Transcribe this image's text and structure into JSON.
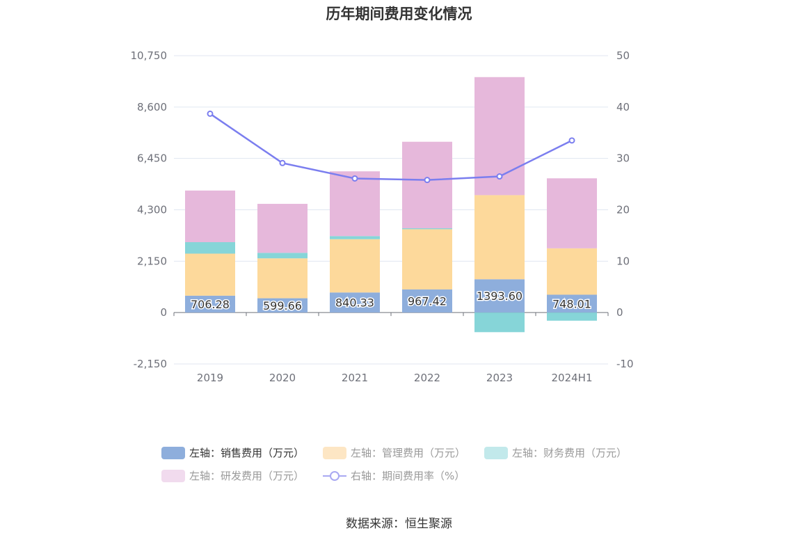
{
  "chart_data": {
    "type": "bar",
    "title": "历年期间费用变化情况",
    "categories": [
      "2019",
      "2020",
      "2021",
      "2022",
      "2023",
      "2024H1"
    ],
    "left_axis": {
      "ticks": [
        "10,750",
        "8,600",
        "6,450",
        "4,300",
        "2,150",
        "0",
        "-2,150"
      ],
      "ylim": [
        -2150,
        10750
      ]
    },
    "right_axis": {
      "ticks": [
        "50",
        "40",
        "30",
        "20",
        "10",
        "0",
        "-10"
      ],
      "ylim": [
        -10,
        50
      ]
    },
    "series": [
      {
        "name": "左轴：销售费用（万元）",
        "type": "bar",
        "axis": "left",
        "color": "#8eaedc",
        "values": [
          706.28,
          599.66,
          840.33,
          967.42,
          1393.6,
          748.01
        ],
        "labels": [
          "706.28",
          "599.66",
          "840.33",
          "967.42",
          "1393.60",
          "748.01"
        ]
      },
      {
        "name": "左轴：管理费用（万元）",
        "type": "bar",
        "axis": "left",
        "color": "#fdd99b",
        "values": [
          1760,
          1670,
          2230,
          2520,
          3520,
          1940
        ]
      },
      {
        "name": "左轴：财务费用（万元）",
        "type": "bar",
        "axis": "left",
        "color": "#86d5d8",
        "values": [
          480,
          230,
          130,
          40,
          -820,
          -340
        ]
      },
      {
        "name": "左轴：研发费用（万元）",
        "type": "bar",
        "axis": "left",
        "color": "#e6b8db",
        "values": [
          2160,
          2050,
          2710,
          3620,
          4940,
          2930
        ]
      },
      {
        "name": "右轴：期间费用率（%）",
        "type": "line",
        "axis": "right",
        "color": "#7b7eef",
        "values": [
          38.7,
          29.1,
          26.1,
          25.8,
          26.5,
          33.5
        ]
      }
    ],
    "legend_position": "bottom",
    "grid": true
  },
  "legend": [
    {
      "label": "左轴：销售费用（万元）",
      "color": "#8eaedc",
      "kind": "bar"
    },
    {
      "label": "左轴：管理费用（万元）",
      "color": "#fde6c4",
      "kind": "bar"
    },
    {
      "label": "左轴：财务费用（万元）",
      "color": "#c2e9eb",
      "kind": "bar"
    },
    {
      "label": "左轴：研发费用（万元）",
      "color": "#f1dbee",
      "kind": "bar"
    },
    {
      "label": "右轴：期间费用率（%）",
      "color": "#a9a9f2",
      "kind": "line"
    }
  ],
  "source": "数据来源：恒生聚源"
}
